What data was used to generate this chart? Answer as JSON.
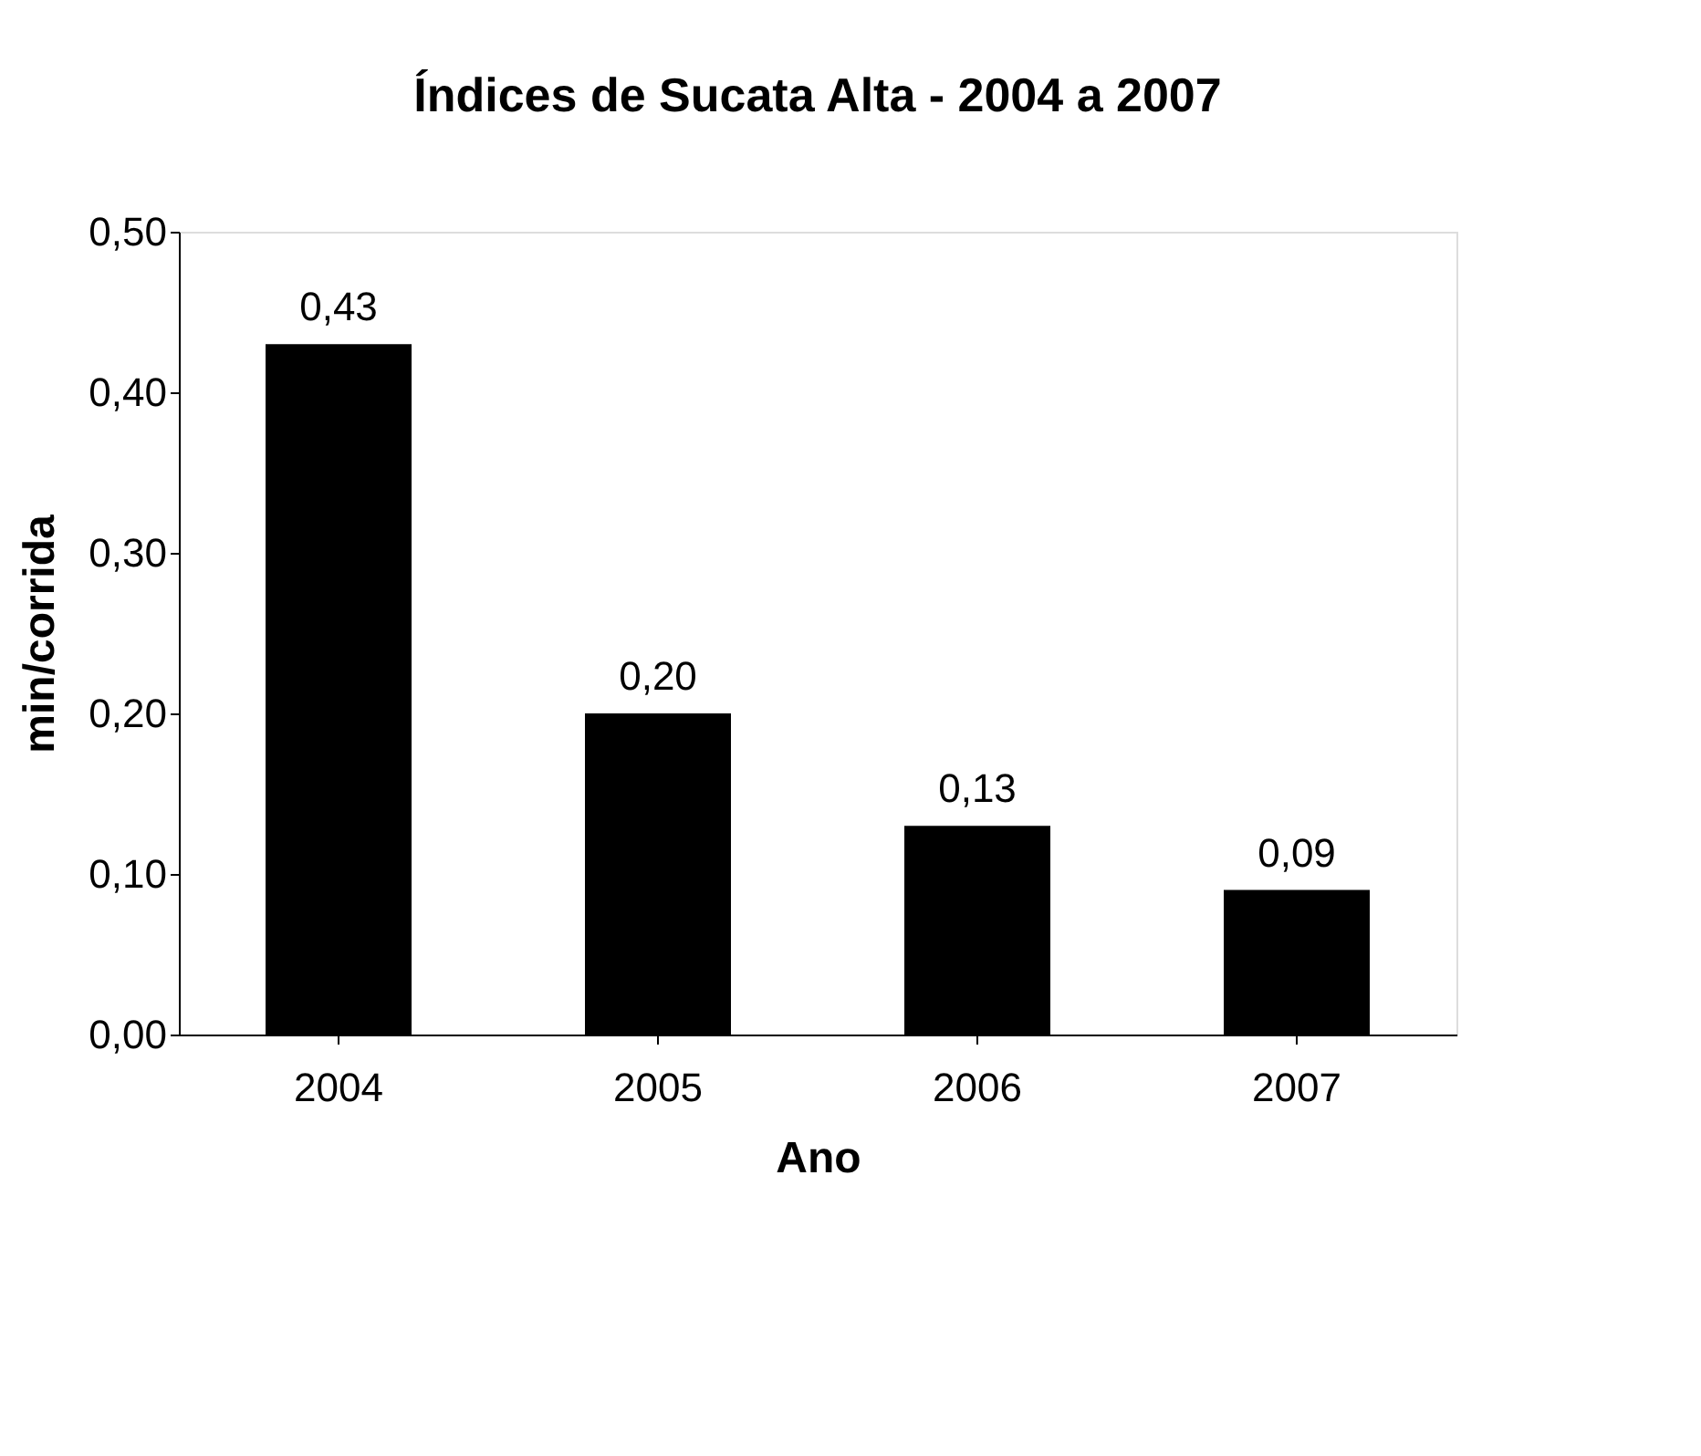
{
  "chart_data": {
    "type": "bar",
    "title": "Índices de Sucata Alta - 2004 a 2007",
    "xlabel": "Ano",
    "ylabel": "min/corrida",
    "categories": [
      "2004",
      "2005",
      "2006",
      "2007"
    ],
    "values": [
      0.43,
      0.2,
      0.13,
      0.09
    ],
    "value_labels": [
      "0,43",
      "0,20",
      "0,13",
      "0,09"
    ],
    "color": "#000000",
    "ylim": [
      0,
      0.5
    ],
    "yticks": [
      {
        "value": 0,
        "label": "0,00"
      },
      {
        "value": 0.1,
        "label": "0,10"
      },
      {
        "value": 0.2,
        "label": "0,20"
      },
      {
        "value": 0.3,
        "label": "0,30"
      },
      {
        "value": 0.4,
        "label": "0,40"
      },
      {
        "value": 0.5,
        "label": "0,50"
      }
    ],
    "grid": false
  }
}
